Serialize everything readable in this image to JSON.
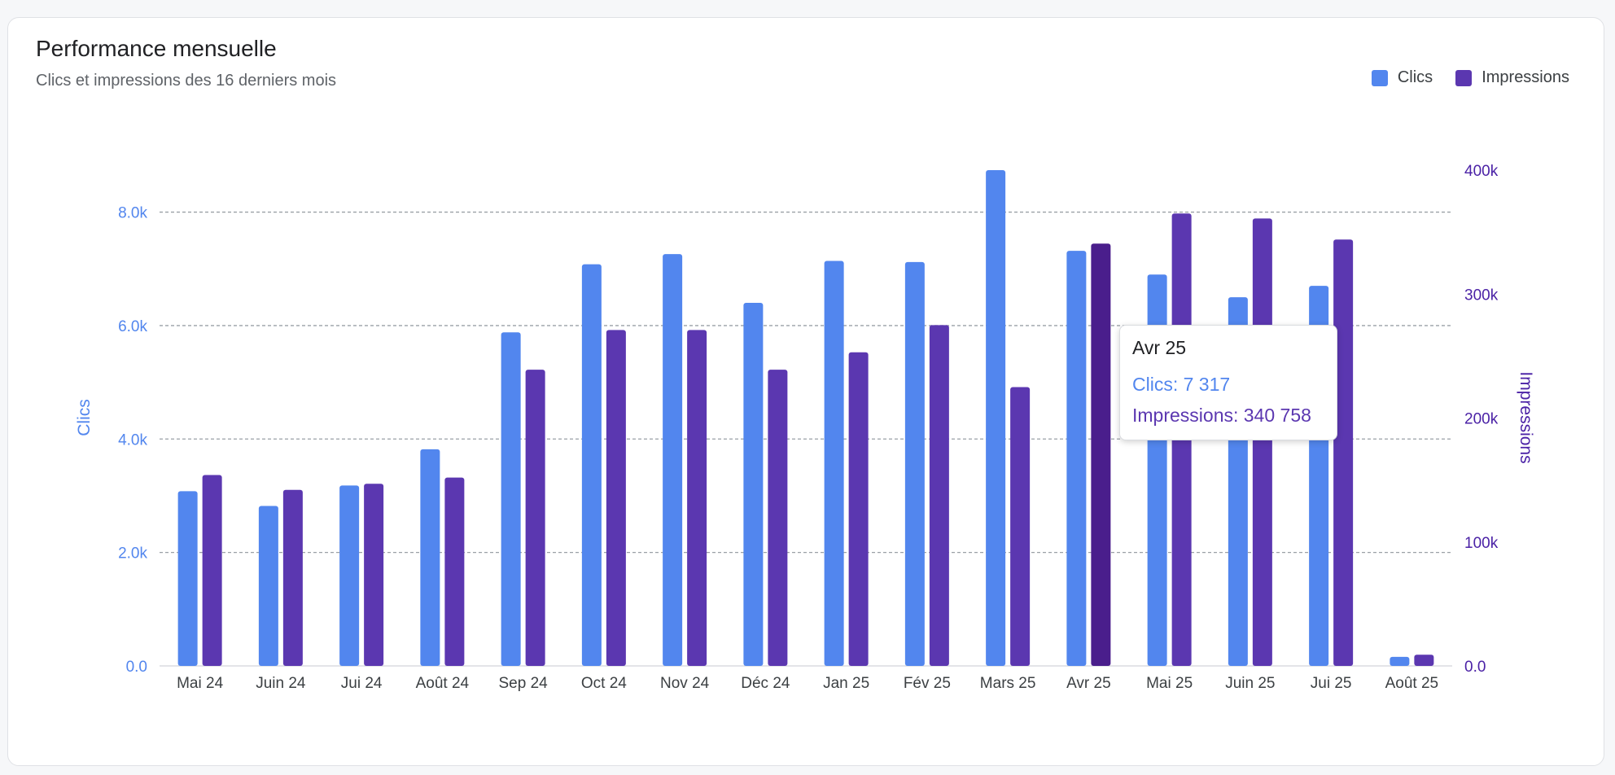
{
  "card": {
    "title": "Performance mensuelle",
    "subtitle": "Clics et impressions des 16 derniers mois"
  },
  "legend": [
    {
      "label": "Clics",
      "color": "#5286ee"
    },
    {
      "label": "Impressions",
      "color": "#5b37b0"
    }
  ],
  "tooltip": {
    "title": "Avr 25",
    "clics_line": "Clics: 7 317",
    "impressions_line": "Impressions: 340 758"
  },
  "chart_data": {
    "type": "bar",
    "title": "Performance mensuelle",
    "subtitle": "Clics et impressions des 16 derniers mois",
    "categories": [
      "Mai 24",
      "Juin 24",
      "Jui 24",
      "Août 24",
      "Sep 24",
      "Oct 24",
      "Nov 24",
      "Déc 24",
      "Jan 25",
      "Fév 25",
      "Mars 25",
      "Avr 25",
      "Mai 25",
      "Juin 25",
      "Jui 25",
      "Août 25"
    ],
    "series": [
      {
        "name": "Clics",
        "axis": "left",
        "color": "#5286ee",
        "values": [
          3080,
          2820,
          3180,
          3820,
          5880,
          7080,
          7260,
          6400,
          7140,
          7120,
          8740,
          7317,
          6900,
          6500,
          6700,
          160
        ]
      },
      {
        "name": "Impressions",
        "axis": "right",
        "color": "#5b37b0",
        "highlight_color": "#4a1e8c",
        "values": [
          154000,
          142000,
          147000,
          152000,
          239000,
          271000,
          271000,
          239000,
          253000,
          275000,
          225000,
          340758,
          365000,
          361000,
          344000,
          9000
        ]
      }
    ],
    "highlight_category": "Avr 25",
    "ylabel_left": "Clics",
    "ylabel_right": "Impressions",
    "ylim_left": [
      0,
      8740
    ],
    "ylim_right": [
      0,
      400000
    ],
    "yticks_left": [
      "0.0",
      "2.0k",
      "4.0k",
      "6.0k",
      "8.0k"
    ],
    "yticks_right": [
      "0.0",
      "100k",
      "200k",
      "300k",
      "400k"
    ],
    "left_axis_color": "#5286ee",
    "right_axis_color": "#4b22a6",
    "grid": true,
    "legend_position": "top-right"
  }
}
